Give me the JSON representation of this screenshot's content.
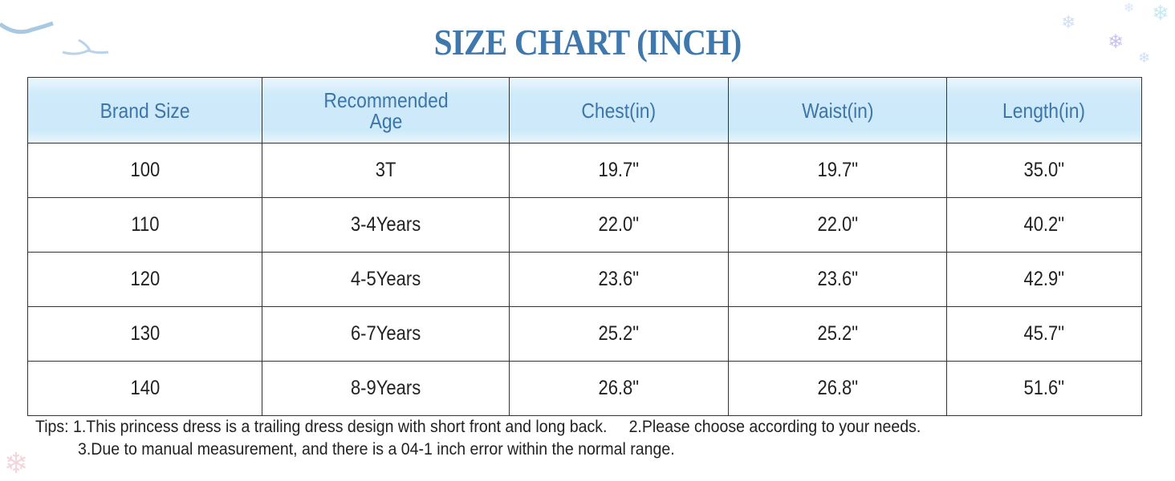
{
  "title": "SIZE CHART (INCH)",
  "table": {
    "headers": [
      "Brand Size",
      "Recommended Age",
      "Chest(in)",
      "Waist(in)",
      "Length(in)"
    ],
    "rows": [
      [
        "100",
        "3T",
        "19.7\"",
        "19.7\"",
        "35.0\""
      ],
      [
        "110",
        "3-4Years",
        "22.0\"",
        "22.0\"",
        "40.2\""
      ],
      [
        "120",
        "4-5Years",
        "23.6\"",
        "23.6\"",
        "42.9\""
      ],
      [
        "130",
        "6-7Years",
        "25.2\"",
        "25.2\"",
        "45.7\""
      ],
      [
        "140",
        "8-9Years",
        "26.8\"",
        "26.8\"",
        "51.6\""
      ]
    ]
  },
  "tips": {
    "line1": "Tips: 1.This princess dress is a trailing dress design with short front and long back.     2.Please choose according to your needs.",
    "line2": "3.Due to manual measurement, and there is a 04-1 inch error within the normal range."
  },
  "colors": {
    "accent": "#3f78ad",
    "header_bg": "#cdeafa"
  }
}
